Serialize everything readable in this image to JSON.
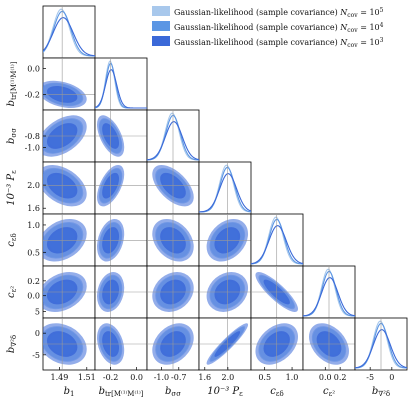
{
  "chart_data": {
    "type": "corner",
    "parameters": [
      {
        "key": "b1",
        "label_main": "b",
        "label_sub": "1",
        "value": 1.492,
        "spread": 0.006,
        "ticks": [
          "1.49",
          "1.51"
        ],
        "tick_values": [
          1.49,
          1.51
        ],
        "range": [
          1.478,
          1.516
        ]
      },
      {
        "key": "btr",
        "label_main": "b",
        "label_sub": "tr[M⁽¹⁾M⁽¹⁾]",
        "value": -0.2,
        "spread": 0.035,
        "ticks": [
          "-0.2",
          "0.0"
        ],
        "tick_values": [
          -0.2,
          0.0
        ],
        "range": [
          -0.32,
          0.08
        ]
      },
      {
        "key": "bss",
        "label_main": "b",
        "label_sub": "σσ",
        "value": -0.8,
        "spread": 0.12,
        "ticks": [
          "-1.0",
          "-0.7"
        ],
        "tick_values": [
          -1.0,
          -0.7
        ],
        "range": [
          -1.25,
          -0.35
        ]
      },
      {
        "key": "pe",
        "label_main": "10⁻³ P",
        "label_sub": "ε",
        "value": 1.99,
        "spread": 0.12,
        "ticks": [
          "1.6",
          "2.0"
        ],
        "tick_values": [
          1.6,
          2.0
        ],
        "range": [
          1.5,
          2.4
        ]
      },
      {
        "key": "ced",
        "label_main": "c",
        "label_sub": "εδ",
        "value": 0.72,
        "spread": 0.13,
        "ticks": [
          "0.5",
          "1.0"
        ],
        "tick_values": [
          0.5,
          1.0
        ],
        "range": [
          0.25,
          1.2
        ]
      },
      {
        "key": "ce2",
        "label_main": "c",
        "label_sub": "ε²",
        "value": 0.05,
        "spread": 0.09,
        "ticks": [
          "0.0",
          "0.2"
        ],
        "tick_values": [
          0.0,
          0.2
        ],
        "range": [
          -0.3,
          0.4
        ]
      },
      {
        "key": "bv2d",
        "label_main": "b",
        "label_sub": "∇²δ",
        "value": -2.5,
        "spread": 1.6,
        "ticks": [
          "-5",
          "0"
        ],
        "tick_values": [
          -5,
          0
        ],
        "range": [
          -8.5,
          3.5
        ]
      }
    ],
    "y_ticks": {
      "btr": {
        "labels": [
          "0.0",
          "-0.2"
        ],
        "values": [
          0.0,
          -0.2
        ]
      },
      "bss": {
        "labels": [
          "-0.8",
          "-1.0"
        ],
        "values": [
          -0.8,
          -1.0
        ]
      },
      "pe": {
        "labels": [
          "2.0",
          "1.6"
        ],
        "values": [
          2.0,
          1.6
        ]
      },
      "ced": {
        "labels": [
          "1.0",
          "0.5"
        ],
        "values": [
          1.0,
          0.5
        ]
      },
      "ce2": {
        "labels": [
          "0.2",
          "0.0"
        ],
        "values": [
          0.2,
          0.0
        ]
      },
      "bv2d": {
        "labels": [
          "5",
          "0",
          "-5"
        ],
        "values": [
          5,
          0,
          -5
        ]
      }
    },
    "correlations": {
      "btr|b1": -0.35,
      "bss|b1": 0.45,
      "pe|b1": -0.4,
      "ced|b1": 0.3,
      "ce2|b1": 0.3,
      "bv2d|b1": -0.25,
      "bss|btr": -0.55,
      "pe|btr": 0.55,
      "ced|btr": 0.3,
      "ce2|btr": 0.2,
      "bv2d|btr": -0.3,
      "pe|bss": -0.55,
      "ced|bss": -0.3,
      "ce2|bss": 0.2,
      "bv2d|bss": 0.3,
      "ced|pe": 0.3,
      "ce2|pe": 0.2,
      "bv2d|pe": 0.93,
      "ce2|ced": -0.85,
      "bv2d|ced": 0.35,
      "bv2d|ce2": -0.35
    },
    "series": [
      {
        "name": "Gaussian-likelihood (sample covariance) N_cov = 10^5",
        "legend_prefix": "Gaussian-likelihood (sample covariance) ",
        "legend_n": "N",
        "legend_n_sub": "cov",
        "legend_eq": " = 10",
        "legend_exp": "5",
        "color": "#a8c8ec",
        "scale": 1.0
      },
      {
        "name": "Gaussian-likelihood (sample covariance) N_cov = 10^4",
        "legend_prefix": "Gaussian-likelihood (sample covariance) ",
        "legend_n": "N",
        "legend_n_sub": "cov",
        "legend_eq": " = 10",
        "legend_exp": "4",
        "color": "#5b96e4",
        "scale": 1.05
      },
      {
        "name": "Gaussian-likelihood (sample covariance) N_cov = 10^3",
        "legend_prefix": "Gaussian-likelihood (sample covariance) ",
        "legend_n": "N",
        "legend_n_sub": "cov",
        "legend_eq": " = 10",
        "legend_exp": "3",
        "color": "#3b69d8",
        "scale": 1.22
      }
    ],
    "legend_placement": "top-right",
    "truth_lines": true,
    "grid": false
  }
}
